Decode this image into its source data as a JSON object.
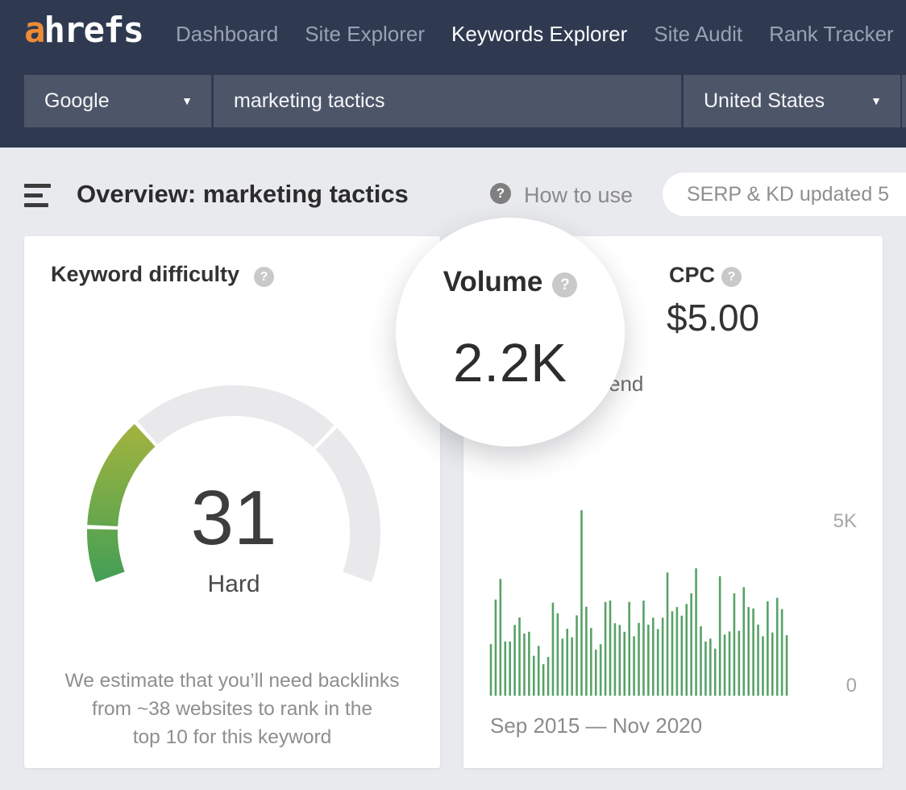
{
  "icons": {
    "help": "?",
    "caret_down": "▼",
    "menu": "hamburger-menu"
  },
  "nav": {
    "logo": {
      "prefix": "a",
      "rest": "hrefs"
    },
    "items": [
      {
        "label": "Dashboard",
        "active": false
      },
      {
        "label": "Site Explorer",
        "active": false
      },
      {
        "label": "Keywords Explorer",
        "active": true
      },
      {
        "label": "Site Audit",
        "active": false
      },
      {
        "label": "Rank Tracker",
        "active": false
      }
    ]
  },
  "search": {
    "engine": "Google",
    "query": "marketing tactics",
    "country": "United States"
  },
  "page_header": {
    "title": "Overview: marketing tactics",
    "help_label": "How to use",
    "update_badge": "SERP & KD updated 5"
  },
  "kd_card": {
    "title": "Keyword difficulty",
    "score": "31",
    "score_label": "Hard",
    "description_line1": "We estimate that you’ll need backlinks",
    "description_line2": "from ~38 websites to rank in the",
    "description_line3": "top 10 for this keyword"
  },
  "volume_overlay": {
    "title": "Volume",
    "value": "2.2K"
  },
  "metrics_card": {
    "cpc_label": "CPC",
    "cpc_value": "$5.00",
    "trend_label_visible_fragment": "end"
  },
  "colors": {
    "navbar_bg": "#2f3a51",
    "input_bg": "#4d5669",
    "page_bg": "#e8eaed",
    "accent_orange": "#ee8b37",
    "bar_green": "#57a267",
    "gauge_green_dark": "#3f9e57",
    "gauge_green_light": "#a5b43d",
    "gauge_track": "#e9e9eb"
  },
  "chart_data": [
    {
      "type": "gauge",
      "title": "Keyword difficulty",
      "value": 31,
      "max": 100,
      "label": "Hard",
      "segment_breaks": [
        10,
        70
      ],
      "arc_span_degrees": 220,
      "fill_gradient": [
        "#3f9e57",
        "#a5b43d"
      ],
      "track_color": "#e9e9eb"
    },
    {
      "type": "bar",
      "title": "Volume trend (monthly search volume)",
      "x_range_label": "Sep 2015 — Nov 2020",
      "y_ticks": [
        "5K",
        "0"
      ],
      "ylim": [
        0,
        5500
      ],
      "bar_color": "#57a267",
      "values": [
        1500,
        2800,
        3400,
        1580,
        1580,
        2060,
        2280,
        1810,
        1860,
        1160,
        1450,
        920,
        1130,
        2710,
        2400,
        1660,
        1950,
        1700,
        2340,
        5400,
        2590,
        1970,
        1340,
        1500,
        2730,
        2770,
        2110,
        2060,
        1860,
        2730,
        1730,
        2120,
        2770,
        2070,
        2270,
        1940,
        2270,
        3590,
        2460,
        2580,
        2330,
        2670,
        2980,
        3710,
        2020,
        1580,
        1660,
        1370,
        3480,
        1780,
        1870,
        2980,
        1890,
        3160,
        2580,
        2540,
        2070,
        1730,
        2750,
        1840,
        2850,
        2520,
        1760
      ]
    }
  ]
}
